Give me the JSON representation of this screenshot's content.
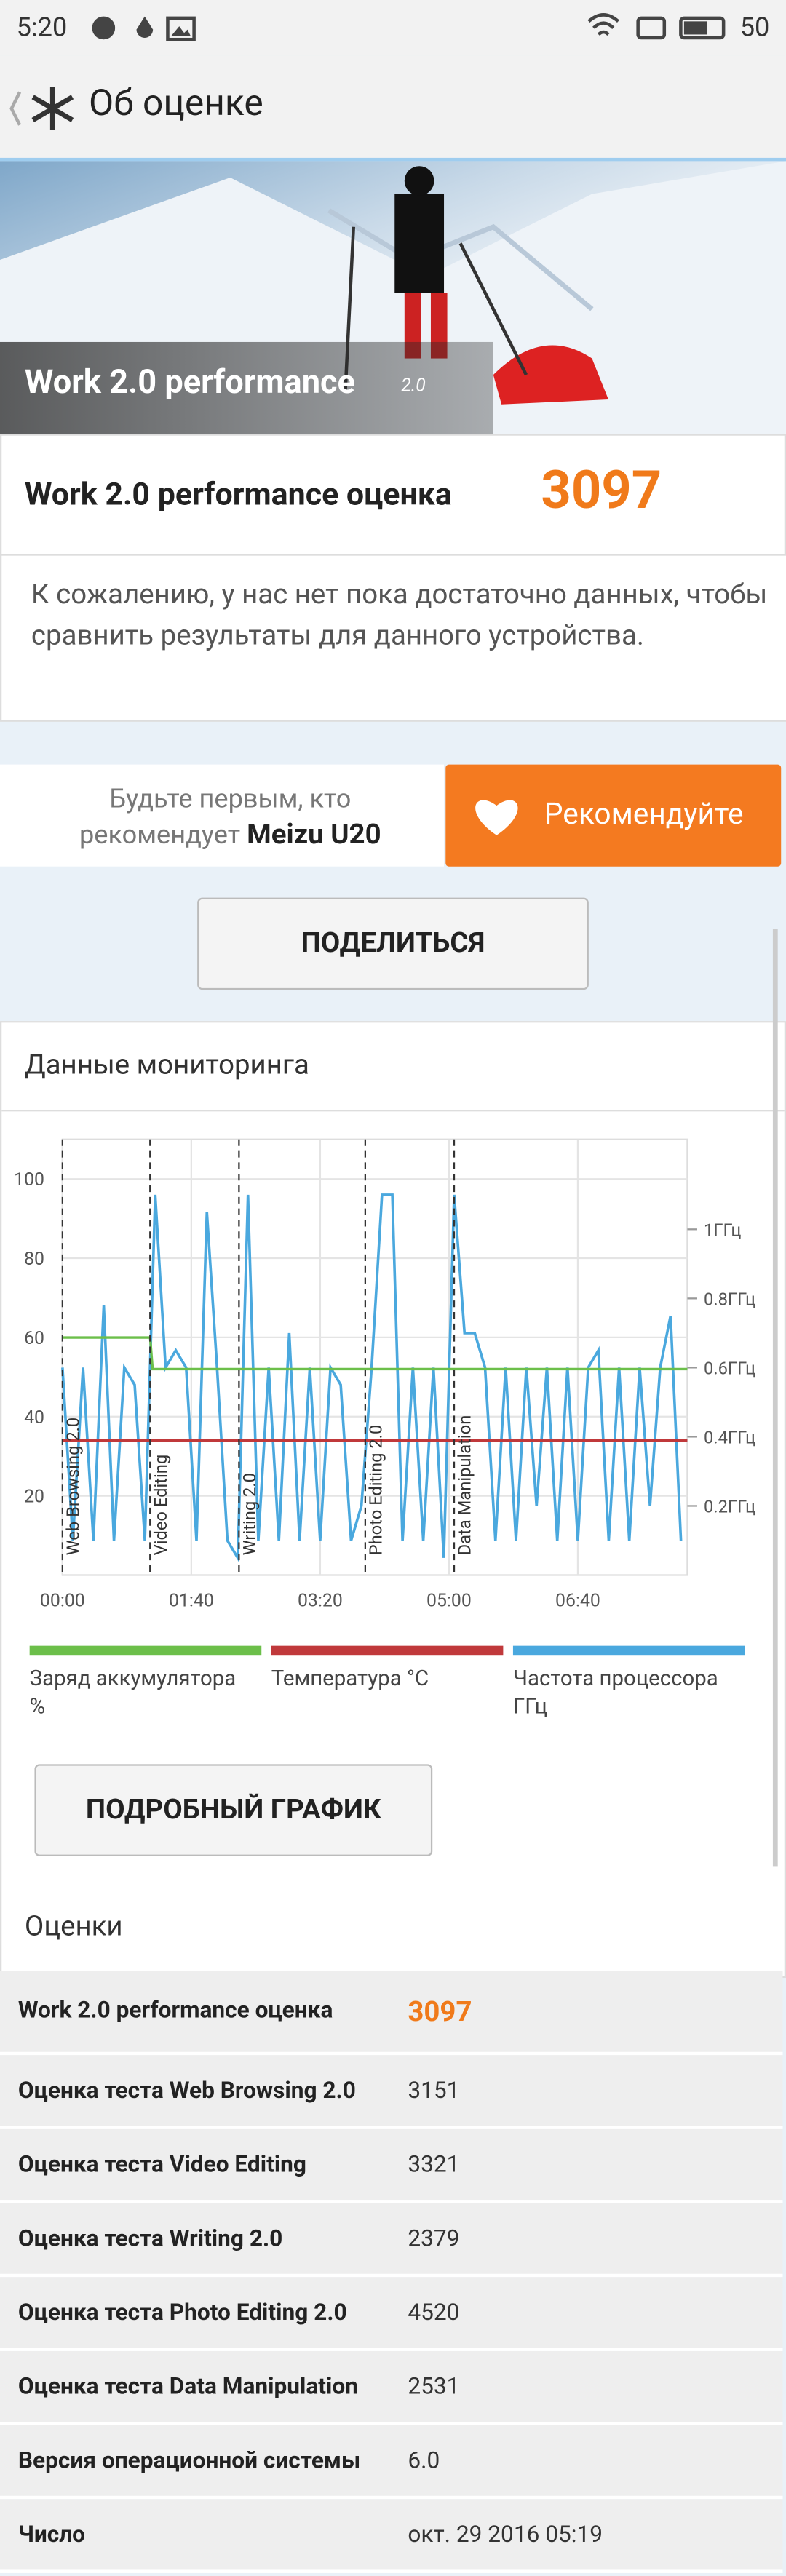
{
  "status_bar": {
    "time": "5:20",
    "battery": "50"
  },
  "header": {
    "title": "Об оценке"
  },
  "banner": {
    "title": "Work 2.0 performance",
    "version": "2.0"
  },
  "score": {
    "label": "Work 2.0 performance оценка",
    "value": "3097"
  },
  "message": "К сожалению, у нас нет пока достаточно данных, чтобы сравнить результаты для данного устройства.",
  "recommend": {
    "text": "Будьте первым, кто рекомендует",
    "device": "Meizu U20",
    "button": "Рекомендуйте"
  },
  "share_button": "ПОДЕЛИТЬСЯ",
  "monitoring": {
    "title": "Данные мониторинга",
    "detail_button": "ПОДРОБНЫЙ ГРАФИК"
  },
  "chart_data": {
    "type": "line",
    "xlim": [
      0,
      485
    ],
    "xticks": [
      {
        "value": 0,
        "label": "00:00"
      },
      {
        "value": 100,
        "label": "01:40"
      },
      {
        "value": 200,
        "label": "03:20"
      },
      {
        "value": 300,
        "label": "05:00"
      },
      {
        "value": 400,
        "label": "06:40"
      }
    ],
    "ylim": [
      0,
      110
    ],
    "yticks": [
      20,
      40,
      60,
      80,
      100
    ],
    "y2lim": [
      0,
      1.26
    ],
    "y2ticks": [
      {
        "value": 0.2,
        "label": "0.2ГГц"
      },
      {
        "value": 0.4,
        "label": "0.4ГГц"
      },
      {
        "value": 0.6,
        "label": "0.6ГГц"
      },
      {
        "value": 0.8,
        "label": "0.8ГГц"
      },
      {
        "value": 1,
        "label": "1ГГц"
      }
    ],
    "grid": true,
    "markers": [
      {
        "x": 0,
        "label": "Web Browsing 2.0"
      },
      {
        "x": 68,
        "label": "Video Editing"
      },
      {
        "x": 137,
        "label": "Writing 2.0"
      },
      {
        "x": 235,
        "label": "Photo Editing 2.0"
      },
      {
        "x": 304,
        "label": "Data Manipulation"
      }
    ],
    "series": [
      {
        "name": "Заряд аккумулятора %",
        "color": "#6cbf4a",
        "x": [
          0,
          68,
          70,
          485
        ],
        "values": [
          60,
          60,
          52,
          52
        ]
      },
      {
        "name": "Температура °C",
        "color": "#c0393b",
        "x": [
          0,
          485
        ],
        "values": [
          34,
          34
        ]
      },
      {
        "name": "Частота процессора ГГц",
        "color": "#4aa8de",
        "axis": "y2",
        "x": [
          0,
          8,
          16,
          24,
          32,
          40,
          48,
          56,
          64,
          72,
          80,
          88,
          96,
          104,
          112,
          120,
          128,
          136,
          144,
          152,
          160,
          168,
          176,
          184,
          192,
          200,
          208,
          216,
          224,
          232,
          240,
          248,
          256,
          264,
          272,
          280,
          288,
          296,
          304,
          312,
          320,
          328,
          336,
          344,
          352,
          360,
          368,
          376,
          384,
          392,
          400,
          408,
          416,
          424,
          432,
          440,
          448,
          456,
          464,
          472,
          480
        ],
        "values": [
          0.6,
          0.1,
          0.6,
          0.1,
          0.78,
          0.1,
          0.6,
          0.55,
          0.1,
          1.1,
          0.6,
          0.65,
          0.6,
          0.1,
          1.05,
          0.6,
          0.1,
          0.05,
          1.1,
          0.1,
          0.6,
          0.1,
          0.7,
          0.1,
          0.6,
          0.1,
          0.6,
          0.55,
          0.1,
          0.2,
          0.6,
          1.1,
          1.1,
          0.1,
          0.6,
          0.1,
          0.6,
          0.05,
          1.1,
          0.7,
          0.7,
          0.6,
          0.1,
          0.6,
          0.1,
          0.6,
          0.2,
          0.6,
          0.1,
          0.6,
          0.1,
          0.6,
          0.65,
          0.1,
          0.6,
          0.1,
          0.6,
          0.2,
          0.6,
          0.75,
          0.1
        ]
      }
    ]
  },
  "ratings": {
    "title": "Оценки",
    "rows": [
      [
        "Work 2.0 performance оценка",
        "3097"
      ],
      [
        "Оценка теста Web Browsing 2.0",
        "3151"
      ],
      [
        "Оценка теста Video Editing",
        "3321"
      ],
      [
        "Оценка теста Writing 2.0",
        "2379"
      ],
      [
        "Оценка теста Photo Editing 2.0",
        "4520"
      ],
      [
        "Оценка теста Data Manipulation",
        "2531"
      ],
      [
        "Версия операционной системы",
        "6.0"
      ],
      [
        "Число",
        "окт. 29 2016 05:19"
      ]
    ]
  }
}
